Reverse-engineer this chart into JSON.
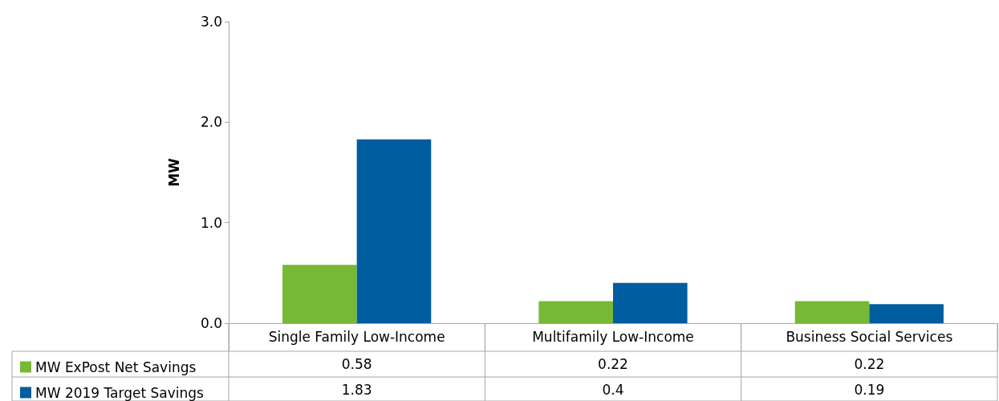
{
  "chart_data": {
    "type": "bar",
    "ylabel": "MW",
    "categories": [
      "Single Family Low-Income",
      "Multifamily Low-Income",
      "Business Social Services"
    ],
    "series": [
      {
        "name": "MW ExPost Net Savings",
        "color": "#77b835",
        "values": [
          0.58,
          0.22,
          0.22
        ]
      },
      {
        "name": "MW 2019 Target Savings",
        "color": "#005ea0",
        "values": [
          1.83,
          0.4,
          0.19
        ]
      }
    ],
    "ylim": [
      0,
      3
    ],
    "yticks": [
      {
        "value": 0,
        "label": "0.0"
      },
      {
        "value": 1,
        "label": "1.0"
      },
      {
        "value": 2,
        "label": "2.0"
      },
      {
        "value": 3,
        "label": "3.0"
      }
    ],
    "grid": false,
    "legend": "bottom",
    "data_labels": true
  }
}
